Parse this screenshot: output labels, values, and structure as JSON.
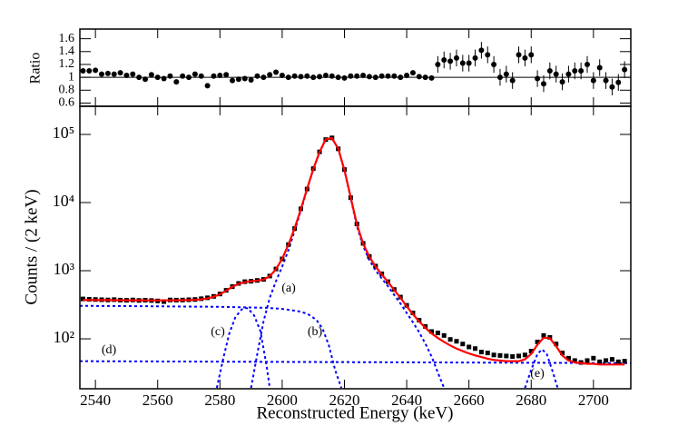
{
  "chart_data": [
    {
      "type": "scatter",
      "y_label": "Ratio",
      "color": "#000000",
      "reference_line": 1,
      "x": [
        2536,
        2538,
        2540,
        2542,
        2544,
        2546,
        2548,
        2550,
        2552,
        2554,
        2556,
        2558,
        2560,
        2562,
        2564,
        2566,
        2568,
        2570,
        2572,
        2574,
        2576,
        2578,
        2580,
        2582,
        2584,
        2586,
        2588,
        2590,
        2592,
        2594,
        2596,
        2598,
        2600,
        2602,
        2604,
        2606,
        2608,
        2610,
        2612,
        2614,
        2616,
        2618,
        2620,
        2622,
        2624,
        2626,
        2628,
        2630,
        2632,
        2634,
        2636,
        2638,
        2640,
        2642,
        2644,
        2646,
        2648,
        2650,
        2652,
        2654,
        2656,
        2658,
        2660,
        2662,
        2664,
        2666,
        2668,
        2670,
        2672,
        2674,
        2676,
        2678,
        2680,
        2682,
        2684,
        2686,
        2688,
        2690,
        2692,
        2694,
        2696,
        2698,
        2700,
        2702,
        2704,
        2706,
        2708,
        2710
      ],
      "values": [
        1.1,
        1.1,
        1.11,
        1.05,
        1.06,
        1.05,
        1.07,
        1.03,
        1.05,
        1.0,
        0.97,
        1.04,
        1.0,
        0.98,
        1.02,
        0.93,
        1.02,
        1.0,
        1.05,
        1.02,
        0.87,
        1.02,
        1.03,
        1.04,
        0.95,
        0.97,
        0.98,
        0.96,
        1.02,
        1.0,
        1.04,
        1.08,
        1.03,
        1.0,
        1.02,
        1.01,
        1.02,
        1.0,
        1.01,
        1.03,
        1.02,
        1.0,
        0.99,
        1.02,
        1.02,
        1.03,
        1.01,
        1.0,
        1.02,
        1.02,
        1.02,
        1.0,
        1.03,
        1.07,
        1.01,
        1.0,
        0.99,
        1.2,
        1.27,
        1.25,
        1.3,
        1.22,
        1.22,
        1.3,
        1.42,
        1.35,
        1.2,
        1.0,
        1.05,
        0.95,
        1.35,
        1.3,
        1.35,
        0.98,
        0.9,
        1.1,
        1.05,
        0.93,
        1.05,
        1.1,
        1.1,
        1.2,
        0.95,
        1.15,
        0.95,
        0.85,
        0.92,
        1.12
      ],
      "errors": [
        0.03,
        0.03,
        0.03,
        0.03,
        0.03,
        0.03,
        0.03,
        0.03,
        0.03,
        0.03,
        0.03,
        0.03,
        0.03,
        0.03,
        0.03,
        0.03,
        0.03,
        0.03,
        0.03,
        0.03,
        0.03,
        0.03,
        0.03,
        0.03,
        0.03,
        0.03,
        0.03,
        0.03,
        0.03,
        0.03,
        0.03,
        0.03,
        0.03,
        0.03,
        0.03,
        0.03,
        0.03,
        0.03,
        0.03,
        0.03,
        0.03,
        0.03,
        0.03,
        0.03,
        0.03,
        0.03,
        0.03,
        0.03,
        0.03,
        0.03,
        0.03,
        0.03,
        0.03,
        0.03,
        0.03,
        0.03,
        0.03,
        0.13,
        0.13,
        0.13,
        0.13,
        0.13,
        0.13,
        0.13,
        0.13,
        0.13,
        0.13,
        0.13,
        0.13,
        0.13,
        0.13,
        0.13,
        0.13,
        0.13,
        0.13,
        0.13,
        0.13,
        0.13,
        0.13,
        0.13,
        0.13,
        0.13,
        0.13,
        0.13,
        0.13,
        0.13,
        0.13,
        0.13
      ],
      "xlim": [
        2535,
        2712
      ],
      "xticks": [
        2540,
        2560,
        2580,
        2600,
        2620,
        2640,
        2660,
        2680,
        2700
      ],
      "ylim": [
        0.55,
        1.75
      ],
      "yticks": [
        0.6,
        0.8,
        1,
        1.2,
        1.4,
        1.6
      ]
    },
    {
      "type": "fit",
      "x_label": "Reconstructed Energy (keV)",
      "y_label": "Counts / (2 keV)",
      "yscale": "log",
      "x": [
        2536,
        2538,
        2540,
        2542,
        2544,
        2546,
        2548,
        2550,
        2552,
        2554,
        2556,
        2558,
        2560,
        2562,
        2564,
        2566,
        2568,
        2570,
        2572,
        2574,
        2576,
        2578,
        2580,
        2582,
        2584,
        2586,
        2588,
        2590,
        2592,
        2594,
        2596,
        2598,
        2600,
        2602,
        2604,
        2606,
        2608,
        2610,
        2612,
        2614,
        2616,
        2618,
        2620,
        2622,
        2624,
        2626,
        2628,
        2630,
        2632,
        2634,
        2636,
        2638,
        2640,
        2642,
        2644,
        2646,
        2648,
        2650,
        2652,
        2654,
        2656,
        2658,
        2660,
        2662,
        2664,
        2666,
        2668,
        2670,
        2672,
        2674,
        2676,
        2678,
        2680,
        2682,
        2684,
        2686,
        2688,
        2690,
        2692,
        2694,
        2696,
        2698,
        2700,
        2702,
        2704,
        2706,
        2708,
        2710
      ],
      "xlim": [
        2535,
        2712
      ],
      "xticks": [
        2540,
        2560,
        2580,
        2600,
        2620,
        2640,
        2660,
        2680,
        2700
      ],
      "ylim": [
        18.5,
        259000
      ],
      "yticks": [
        {
          "value": 100,
          "label": "10²"
        },
        {
          "value": 1000,
          "label": "10³"
        },
        {
          "value": 10000,
          "label": "10⁴"
        },
        {
          "value": 100000,
          "label": "10⁵"
        }
      ],
      "series": [
        {
          "style": "points",
          "color": "#000000",
          "values": [
            385,
            380,
            378,
            375,
            372,
            376,
            370,
            368,
            372,
            366,
            369,
            365,
            360,
            352,
            372,
            370,
            371,
            375,
            378,
            388,
            400,
            420,
            455,
            515,
            585,
            650,
            690,
            700,
            720,
            745,
            835,
            1060,
            1490,
            2420,
            4150,
            8100,
            15800,
            31500,
            55500,
            84000,
            89000,
            61500,
            30500,
            11800,
            4850,
            2520,
            1620,
            1170,
            900,
            690,
            530,
            410,
            310,
            240,
            188,
            152,
            128,
            122,
            112,
            98,
            92,
            84,
            76,
            72,
            64,
            62,
            58,
            57,
            56,
            55,
            56,
            58,
            66,
            90,
            112,
            105,
            84,
            62,
            52,
            48,
            45,
            48,
            52,
            46,
            48,
            50,
            46,
            47
          ]
        },
        {
          "style": "line",
          "color": "#ff0000",
          "values": [
            372,
            371,
            371,
            370,
            370,
            369,
            369,
            368,
            368,
            368,
            367,
            367,
            367,
            367,
            368,
            368,
            369,
            371,
            374,
            380,
            392,
            415,
            450,
            510,
            580,
            640,
            680,
            700,
            715,
            740,
            830,
            1050,
            1500,
            2400,
            4200,
            8000,
            16000,
            31000,
            55000,
            85000,
            88000,
            62000,
            30000,
            12000,
            4800,
            2500,
            1600,
            1150,
            880,
            680,
            520,
            400,
            300,
            230,
            180,
            145,
            120,
            103,
            90,
            80,
            72,
            66,
            61,
            57,
            54,
            51,
            49,
            48,
            47,
            47,
            47,
            50,
            60,
            82,
            104,
            102,
            78,
            57,
            48,
            45,
            44,
            43,
            43,
            42,
            42,
            42,
            42,
            42
          ]
        },
        {
          "name": "(a)",
          "style": "dashed",
          "color": "#0000ff",
          "x": [
            2590,
            2592,
            2594,
            2596,
            2598,
            2600,
            2602,
            2604,
            2606,
            2608,
            2610,
            2612,
            2614,
            2616,
            2618,
            2620,
            2622,
            2624,
            2626,
            2628,
            2630,
            2632,
            2634,
            2636,
            2638,
            2640,
            2642,
            2644,
            2646,
            2648,
            2650,
            2652
          ],
          "values": [
            19,
            60,
            180,
            400,
            700,
            1150,
            2000,
            3850,
            7650,
            15600,
            30700,
            54700,
            84700,
            87700,
            61700,
            29700,
            11700,
            4500,
            2300,
            1430,
            1010,
            770,
            590,
            440,
            330,
            240,
            175,
            125,
            85,
            55,
            32,
            19
          ]
        },
        {
          "name": "(b)",
          "style": "dashed",
          "color": "#0000ff",
          "x": [
            2535,
            2560,
            2580,
            2595,
            2600,
            2605,
            2608,
            2611,
            2613,
            2615,
            2617,
            2619
          ],
          "values": [
            305,
            300,
            295,
            285,
            275,
            255,
            235,
            190,
            140,
            80,
            35,
            19
          ]
        },
        {
          "name": "(c)",
          "style": "dashed",
          "color": "#0000ff",
          "x": [
            2579,
            2581,
            2583,
            2585,
            2587,
            2588,
            2589,
            2591,
            2593,
            2595,
            2596
          ],
          "values": [
            19,
            50,
            120,
            210,
            270,
            285,
            280,
            220,
            130,
            40,
            19
          ]
        },
        {
          "name": "(d)",
          "style": "dashed",
          "color": "#0000ff",
          "x": [
            2535,
            2712
          ],
          "values": [
            47,
            44
          ]
        },
        {
          "name": "(e)",
          "style": "dashed",
          "color": "#0000ff",
          "x": [
            2678,
            2680,
            2682,
            2683.5,
            2685,
            2687,
            2688.5
          ],
          "values": [
            19,
            35,
            60,
            70,
            60,
            32,
            19
          ]
        }
      ]
    }
  ]
}
